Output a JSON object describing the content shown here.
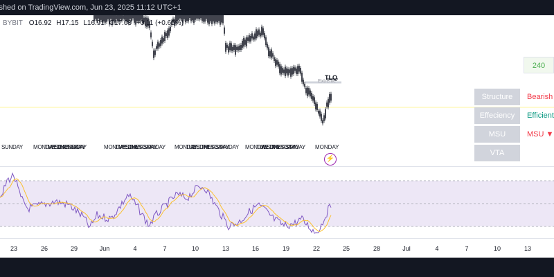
{
  "header": {
    "published": "ished on TradingView.com, Jun 23, 2025 11:12 UTC+1"
  },
  "ohlc": {
    "symbol": "BYBIT",
    "o_label": "O",
    "o": "16.92",
    "h_label": "H",
    "h": "17.15",
    "l_label": "L",
    "l": "16.91",
    "c_label": "C",
    "c": "17.03",
    "change": "+0.11 (+0.65%)"
  },
  "annotations": {
    "tlq": "TLQ",
    "extreme": "Extreme"
  },
  "day_labels": [
    {
      "text": "SUNDAY",
      "x": 2
    },
    {
      "text": "MONDAY",
      "x": 48
    },
    {
      "text": "TUESDAY",
      "x": 64
    },
    {
      "text": "WEDNESDAY",
      "x": 70
    },
    {
      "text": "THURSDAY",
      "x": 82
    },
    {
      "text": "FRIDAY",
      "x": 98
    },
    {
      "text": "MONDAY",
      "x": 150
    },
    {
      "text": "TUESDAY",
      "x": 166
    },
    {
      "text": "WEDNESDAY",
      "x": 172
    },
    {
      "text": "THURSDAY",
      "x": 186
    },
    {
      "text": "FRIDAY",
      "x": 212
    },
    {
      "text": "MONDAY",
      "x": 252
    },
    {
      "text": "TUESDAY",
      "x": 268
    },
    {
      "text": "WEDNESDAY",
      "x": 276
    },
    {
      "text": "THURSDAY",
      "x": 290
    },
    {
      "text": "FRIDAY",
      "x": 318
    },
    {
      "text": "MONDAY",
      "x": 354
    },
    {
      "text": "TUESDAY",
      "x": 370
    },
    {
      "text": "WEDNESDAY",
      "x": 377
    },
    {
      "text": "THURSDAY",
      "x": 391
    },
    {
      "text": "FRIDAY",
      "x": 414
    }
  ],
  "last_day": "MONDAY",
  "table": {
    "number": "240",
    "rows": [
      {
        "key": "Structure",
        "value": "Bearish",
        "color": "#f23645"
      },
      {
        "key": "Effeciency",
        "value": "Efficient",
        "color": "#089981"
      },
      {
        "key": "MSU",
        "value": "MSU ▼",
        "color": "#f23645"
      },
      {
        "key": "VTA",
        "value": "",
        "color": "#131722"
      }
    ]
  },
  "x_axis": [
    "23",
    "26",
    "29",
    "Jun",
    "4",
    "7",
    "10",
    "13",
    "16",
    "19",
    "22",
    "25",
    "28",
    "Jul",
    "4",
    "7",
    "10",
    "13"
  ],
  "colors": {
    "rsi_line": "#7e57c2",
    "rsi_ma": "#fbc02d",
    "rsi_band": "#ede7f6",
    "candle": "#131722",
    "bg_dark": "#131722"
  },
  "icons": {
    "bolt": "⚡"
  }
}
